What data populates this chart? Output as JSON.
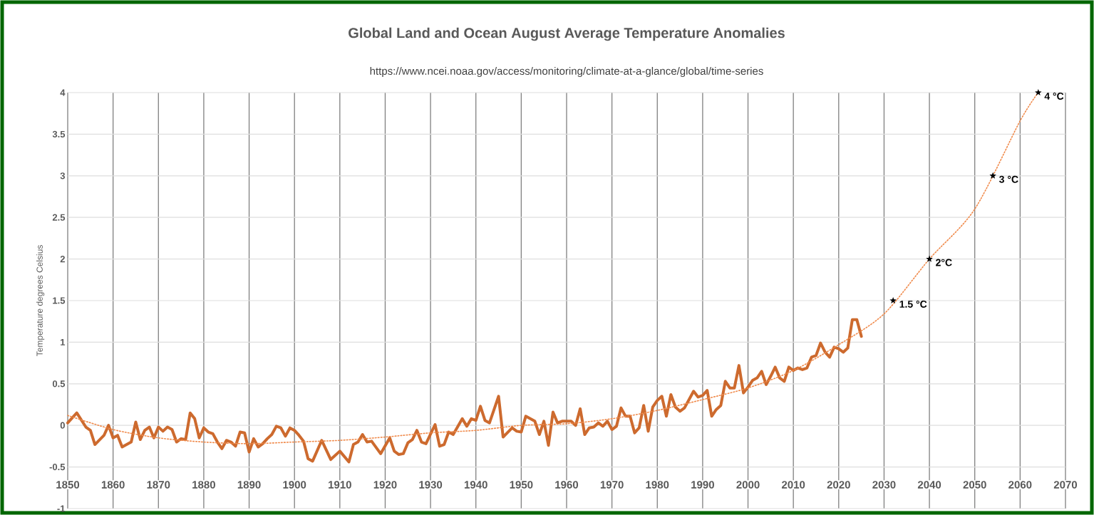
{
  "chart_data": {
    "type": "line",
    "title": "Global Land and Ocean August Average Temperature Anomalies",
    "subtitle": "https://www.ncei.noaa.gov/access/monitoring/climate-at-a-glance/global/time-series",
    "ylabel": "Temperature degrees Celsius",
    "xlim": [
      1850,
      2070
    ],
    "xticks": [
      1850,
      1860,
      1870,
      1880,
      1890,
      1900,
      1910,
      1920,
      1930,
      1940,
      1950,
      1960,
      1970,
      1980,
      1990,
      2000,
      2010,
      2020,
      2030,
      2040,
      2050,
      2060,
      2070
    ],
    "ylim": [
      -1,
      4
    ],
    "yticks": [
      -1,
      -0.5,
      0,
      0.5,
      1,
      1.5,
      2,
      2.5,
      3,
      3.5,
      4
    ],
    "grid": true,
    "marker": "none",
    "series": [
      {
        "color": "#cd6a2e",
        "line_style": "solid",
        "x": [
          1850,
          1852,
          1854,
          1855,
          1856,
          1858,
          1859,
          1860,
          1861,
          1862,
          1864,
          1865,
          1866,
          1867,
          1868,
          1869,
          1870,
          1871,
          1872,
          1873,
          1874,
          1875,
          1876,
          1877,
          1878,
          1879,
          1880,
          1881,
          1882,
          1883,
          1884,
          1885,
          1886,
          1887,
          1888,
          1889,
          1890,
          1891,
          1892,
          1893,
          1894,
          1895,
          1896,
          1897,
          1898,
          1899,
          1900,
          1901,
          1902,
          1903,
          1904,
          1906,
          1908,
          1910,
          1912,
          1913,
          1914,
          1915,
          1916,
          1917,
          1919,
          1921,
          1922,
          1923,
          1924,
          1925,
          1926,
          1927,
          1928,
          1929,
          1931,
          1932,
          1933,
          1934,
          1935,
          1937,
          1938,
          1939,
          1940,
          1941,
          1942,
          1943,
          1945,
          1946,
          1948,
          1949,
          1950,
          1951,
          1953,
          1954,
          1955,
          1956,
          1957,
          1958,
          1959,
          1961,
          1962,
          1963,
          1964,
          1965,
          1966,
          1967,
          1968,
          1969,
          1970,
          1971,
          1972,
          1973,
          1974,
          1975,
          1976,
          1977,
          1978,
          1979,
          1980,
          1981,
          1982,
          1983,
          1984,
          1985,
          1986,
          1988,
          1989,
          1990,
          1991,
          1992,
          1993,
          1994,
          1995,
          1996,
          1997,
          1998,
          1999,
          2000,
          2001,
          2002,
          2003,
          2004,
          2005,
          2006,
          2007,
          2008,
          2009,
          2010,
          2011,
          2012,
          2013,
          2014,
          2015,
          2016,
          2017,
          2018,
          2019,
          2020,
          2021,
          2022,
          2023,
          2024,
          2025
        ],
        "values": [
          0.03,
          0.15,
          -0.02,
          -0.06,
          -0.23,
          -0.12,
          0.0,
          -0.15,
          -0.12,
          -0.26,
          -0.2,
          0.04,
          -0.17,
          -0.06,
          -0.02,
          -0.15,
          -0.02,
          -0.07,
          -0.02,
          -0.05,
          -0.2,
          -0.16,
          -0.17,
          0.15,
          0.08,
          -0.15,
          -0.03,
          -0.08,
          -0.1,
          -0.2,
          -0.28,
          -0.18,
          -0.2,
          -0.25,
          -0.08,
          -0.09,
          -0.32,
          -0.16,
          -0.26,
          -0.22,
          -0.16,
          -0.11,
          -0.01,
          -0.03,
          -0.13,
          -0.03,
          -0.06,
          -0.12,
          -0.19,
          -0.4,
          -0.43,
          -0.18,
          -0.41,
          -0.31,
          -0.44,
          -0.23,
          -0.2,
          -0.11,
          -0.2,
          -0.19,
          -0.34,
          -0.15,
          -0.31,
          -0.35,
          -0.34,
          -0.21,
          -0.17,
          -0.06,
          -0.2,
          -0.22,
          0.01,
          -0.25,
          -0.23,
          -0.08,
          -0.11,
          0.08,
          -0.01,
          0.08,
          0.06,
          0.23,
          0.06,
          0.03,
          0.35,
          -0.14,
          -0.03,
          -0.07,
          -0.08,
          0.11,
          0.05,
          -0.11,
          0.05,
          -0.24,
          0.16,
          0.03,
          0.05,
          0.05,
          0.0,
          0.2,
          -0.11,
          -0.03,
          -0.02,
          0.03,
          -0.01,
          0.05,
          -0.05,
          -0.01,
          0.21,
          0.11,
          0.11,
          -0.09,
          -0.03,
          0.24,
          -0.07,
          0.22,
          0.3,
          0.35,
          0.11,
          0.37,
          0.22,
          0.17,
          0.21,
          0.41,
          0.34,
          0.36,
          0.42,
          0.11,
          0.19,
          0.24,
          0.53,
          0.45,
          0.45,
          0.72,
          0.39,
          0.46,
          0.54,
          0.57,
          0.65,
          0.49,
          0.59,
          0.7,
          0.57,
          0.53,
          0.7,
          0.66,
          0.69,
          0.67,
          0.69,
          0.82,
          0.84,
          0.99,
          0.88,
          0.82,
          0.94,
          0.92,
          0.88,
          0.93,
          1.27,
          1.27,
          1.07
        ]
      },
      {
        "color": "#f08a4b",
        "line_style": "dotted",
        "x": [
          1850,
          1860,
          1870,
          1880,
          1890,
          1900,
          1910,
          1920,
          1930,
          1940,
          1950,
          1960,
          1970,
          1980,
          1990,
          2000,
          2010,
          2020,
          2030,
          2040,
          2050,
          2060,
          2064
        ],
        "values": [
          0.12,
          -0.05,
          -0.15,
          -0.2,
          -0.22,
          -0.2,
          -0.18,
          -0.14,
          -0.09,
          -0.06,
          0.0,
          0.02,
          0.08,
          0.18,
          0.31,
          0.45,
          0.66,
          0.97,
          1.34,
          2.0,
          2.6,
          3.66,
          4.0
        ]
      },
      {
        "type": "scatter",
        "color": "#000000",
        "marker": "star",
        "x": [
          2032,
          2040,
          2054,
          2064
        ],
        "values": [
          1.5,
          2.0,
          3.0,
          4.0
        ]
      }
    ],
    "annotations": [
      {
        "text": "1.5 °C",
        "x": 2032,
        "y": 1.5
      },
      {
        "text": "2°C",
        "x": 2040,
        "y": 2.0
      },
      {
        "text": "3 °C",
        "x": 2054,
        "y": 3.0
      },
      {
        "text": "4 °C",
        "x": 2064,
        "y": 4.0
      }
    ]
  }
}
